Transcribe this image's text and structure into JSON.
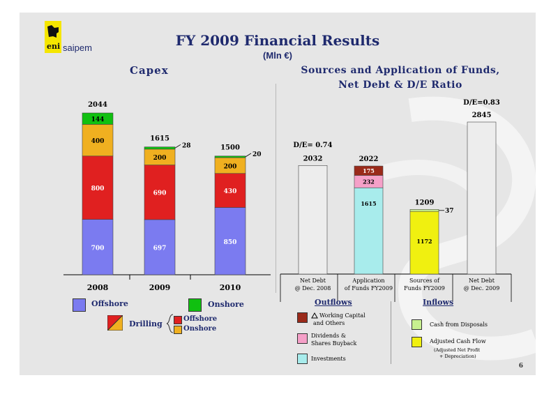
{
  "header": {
    "brand": "saipem",
    "logo_text": "eni",
    "title": "FY 2009 Financial Results",
    "subtitle": "(Mln €)",
    "page_number": "6"
  },
  "colors": {
    "offshore": "#7b7bf0",
    "drilling_offshore": "#e02020",
    "drilling_onshore": "#f0b020",
    "onshore": "#10c010",
    "net_debt": "#ededed",
    "working_capital": "#9a2a1a",
    "dividends": "#f5a0c8",
    "investments": "#a8ecec",
    "disposals": "#c8f090",
    "cash_flow": "#f0f010",
    "title_text": "#1f2a6e"
  },
  "chart_data": [
    {
      "type": "bar",
      "stacked": true,
      "title": "Capex",
      "categories": [
        "2008",
        "2009",
        "2010"
      ],
      "totals": [
        2044,
        1615,
        1500
      ],
      "series": [
        {
          "name": "Offshore",
          "values": [
            700,
            697,
            850
          ]
        },
        {
          "name": "Drilling Offshore",
          "values": [
            800,
            690,
            430
          ]
        },
        {
          "name": "Drilling Onshore",
          "values": [
            400,
            200,
            200
          ]
        },
        {
          "name": "Onshore",
          "values": [
            144,
            28,
            20
          ]
        }
      ],
      "ylim": [
        0,
        2044
      ]
    },
    {
      "type": "bar",
      "title": "Sources and Application of Funds, Net Debt & D/E Ratio",
      "categories": [
        "Net Debt @ Dec. 2008",
        "Application of Funds FY2009",
        "Sources of Funds FY2009",
        "Net Debt @ Dec. 2009"
      ],
      "category_lines": [
        [
          "Net Debt",
          "@ Dec. 2008"
        ],
        [
          "Application",
          "of Funds FY2009"
        ],
        [
          "Sources of",
          "Funds FY2009"
        ],
        [
          "Net Debt",
          "@ Dec. 2009"
        ]
      ],
      "totals": [
        2032,
        2022,
        1209,
        2845
      ],
      "de_ratios": [
        "D/E= 0.74",
        "D/E=0.83"
      ],
      "series": [
        {
          "name": "Net Debt",
          "values": [
            2032,
            null,
            null,
            2845
          ]
        },
        {
          "name": "Investments",
          "values": [
            null,
            1615,
            null,
            null
          ]
        },
        {
          "name": "Dividends & Shares Buyback",
          "values": [
            null,
            232,
            null,
            null
          ]
        },
        {
          "name": "Working Capital and Others",
          "values": [
            null,
            175,
            null,
            null
          ]
        },
        {
          "name": "Adjusted Cash Flow",
          "values": [
            null,
            null,
            1172,
            null
          ]
        },
        {
          "name": "Cash from Disposals",
          "values": [
            null,
            null,
            37,
            null
          ]
        }
      ],
      "ylim": [
        0,
        2845
      ]
    }
  ],
  "legend_left": {
    "offshore": "Offshore",
    "onshore": "Onshore",
    "drilling": "Drilling",
    "drilling_offshore": "Offshore",
    "drilling_onshore": "Onshore"
  },
  "legend_right": {
    "outflows_title": "Outflows",
    "inflows_title": "Inflows",
    "working_capital_1": "Working Capital",
    "working_capital_2": "and Others",
    "dividends_1": "Dividends &",
    "dividends_2": "Shares Buyback",
    "investments": "Investments",
    "disposals": "Cash from Disposals",
    "cash_flow": "Adjusted Cash Flow",
    "cash_flow_note_1": "(Adjusted Net Profit",
    "cash_flow_note_2": "+ Depreciation)"
  }
}
